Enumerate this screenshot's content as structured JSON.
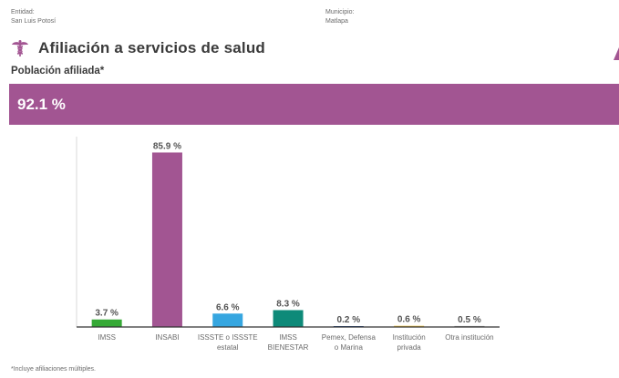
{
  "header": {
    "entidad_label": "Entidad:",
    "entidad_value": "San Luis Potosí",
    "municipio_label": "Municipio:",
    "municipio_value": "Matlapa"
  },
  "section": {
    "title": "Afiliación a servicios de salud",
    "icon": "caduceus-icon",
    "subtitle": "Población afiliada*",
    "total_value": "92.1 %"
  },
  "colors": {
    "accent": "#a25592",
    "imss": "#35a936",
    "insabi": "#a25592",
    "issste": "#36a6e0",
    "imss_bienestar": "#0e8a79",
    "pemex": "#2c4f8c",
    "privada": "#f2c94c",
    "otra": "#9b9b9b"
  },
  "chart_data": {
    "type": "bar",
    "categories": [
      "IMSS",
      "INSABI",
      "ISSSTE o ISSSTE estatal",
      "IMSS BIENESTAR",
      "Pemex, Defensa o Marina",
      "Institución privada",
      "Otra institución"
    ],
    "category_lines": [
      [
        "IMSS"
      ],
      [
        "INSABI"
      ],
      [
        "ISSSTE o ISSSTE",
        "estatal"
      ],
      [
        "IMSS",
        "BIENESTAR"
      ],
      [
        "Pemex, Defensa",
        "o Marina"
      ],
      [
        "Institución",
        "privada"
      ],
      [
        "Otra institución"
      ]
    ],
    "values": [
      3.7,
      85.9,
      6.6,
      8.3,
      0.2,
      0.6,
      0.5
    ],
    "value_labels": [
      "3.7 %",
      "85.9 %",
      "6.6 %",
      "8.3 %",
      "0.2 %",
      "0.6 %",
      "0.5 %"
    ],
    "bar_colors": [
      "#35a936",
      "#a25592",
      "#36a6e0",
      "#0e8a79",
      "#2c4f8c",
      "#f2c94c",
      "#9b9b9b"
    ],
    "ylim": [
      0,
      100
    ],
    "grid": false,
    "xlabel": "",
    "ylabel": ""
  },
  "footnote": "*Incluye afiliaciones múltiples."
}
